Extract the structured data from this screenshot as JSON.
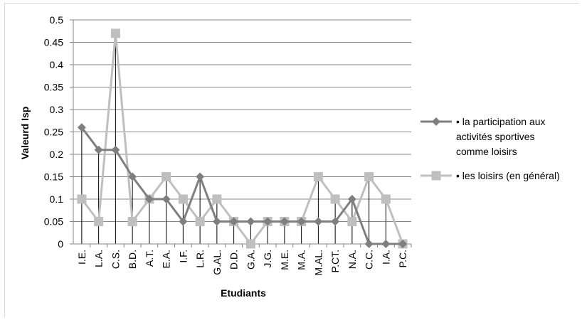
{
  "chart_data": {
    "type": "line",
    "xlabel": "Etudiants",
    "ylabel": "Valeurd Isp",
    "ylim": [
      0,
      0.5
    ],
    "yticks": [
      "0",
      "0.05",
      "0.1",
      "0.15",
      "0.2",
      "0.25",
      "0.3",
      "0.35",
      "0.4",
      "0.45",
      "0.5"
    ],
    "categories": [
      "I.E.",
      "L.A.",
      "C.S.",
      "B.D.",
      "A.T.",
      "E.A.",
      "I.F.",
      "L.R.",
      "G.AL.",
      "D.D.",
      "G.A.",
      "J.G.",
      "M.E.",
      "M.A.",
      "M.AL.",
      "P.CT.",
      "N.A.",
      "C.C.",
      "I.A.",
      "P.C."
    ],
    "grid": "horizontal",
    "drop_lines": true,
    "legend_position": "right",
    "series": [
      {
        "name": "• la participation aux activités sportives comme loisirs",
        "legend_lines": [
          "• la participation aux",
          "activités sportives",
          "comme loisirs"
        ],
        "color": "#7f7f7f",
        "marker": "diamond",
        "values": [
          0.26,
          0.21,
          0.21,
          0.15,
          0.1,
          0.1,
          0.05,
          0.15,
          0.05,
          0.05,
          0.05,
          0.05,
          0.05,
          0.05,
          0.05,
          0.05,
          0.1,
          0,
          0,
          0
        ]
      },
      {
        "name": "• les loisirs (en général)",
        "legend_lines": [
          "• les loisirs (en général)"
        ],
        "color": "#bfbfbf",
        "marker": "square",
        "values": [
          0.1,
          0.05,
          0.47,
          0.05,
          0.1,
          0.15,
          0.1,
          0.05,
          0.1,
          0.05,
          0,
          0.05,
          0.05,
          0.05,
          0.15,
          0.1,
          0.05,
          0.15,
          0.1,
          0
        ]
      }
    ]
  }
}
